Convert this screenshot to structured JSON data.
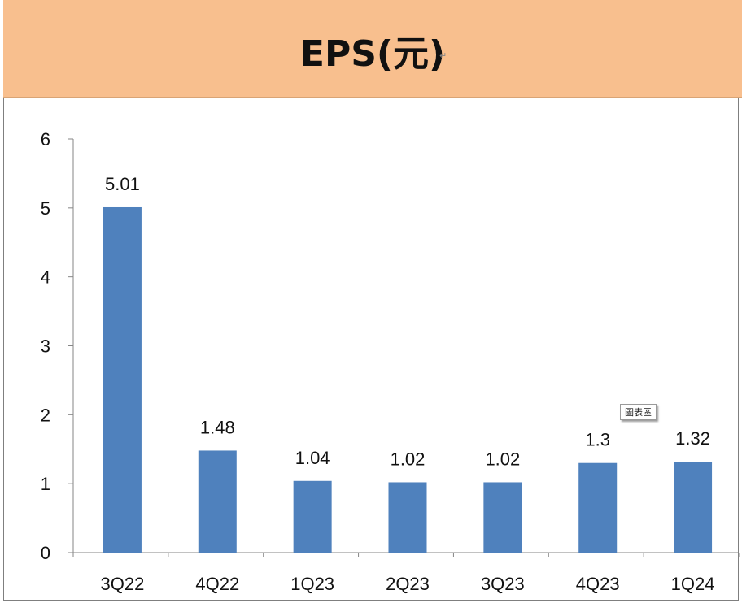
{
  "header": {
    "title": "EPS(元)",
    "para_mark": "↵"
  },
  "tooltip": {
    "label": "圖表區"
  },
  "colors": {
    "header_bg": "#f8bf8e",
    "bar": "#4f81bd",
    "axis": "#868686"
  },
  "chart_data": {
    "type": "bar",
    "title": "EPS(元)",
    "categories": [
      "3Q22",
      "4Q22",
      "1Q23",
      "2Q23",
      "3Q23",
      "4Q23",
      "1Q24"
    ],
    "values": [
      5.01,
      1.48,
      1.04,
      1.02,
      1.02,
      1.3,
      1.32
    ],
    "data_labels": [
      "5.01",
      "1.48",
      "1.04",
      "1.02",
      "1.02",
      "1.3",
      "1.32"
    ],
    "y_ticks": [
      0,
      1,
      2,
      3,
      4,
      5,
      6
    ],
    "ylim": [
      0,
      6
    ],
    "grid": false,
    "legend": "none"
  }
}
